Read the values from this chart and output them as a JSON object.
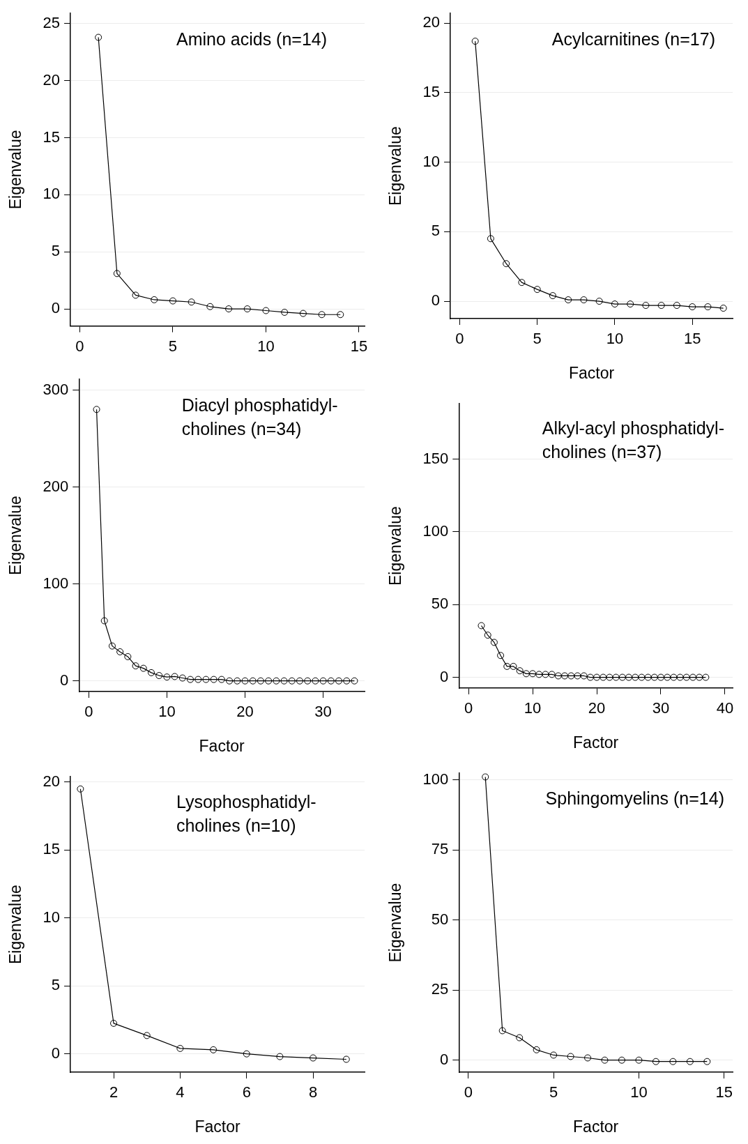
{
  "chart_data": [
    {
      "type": "line",
      "ylabel": "Eigenvalue",
      "annotations": [
        "Amino acids (n=14)"
      ],
      "x": [
        1,
        2,
        3,
        4,
        5,
        6,
        7,
        8,
        9,
        10,
        11,
        12,
        13,
        14
      ],
      "series": [
        {
          "color": "#000000",
          "values": [
            23.8,
            3.1,
            1.2,
            0.8,
            0.7,
            0.6,
            0.2,
            0,
            0,
            -0.15,
            -0.3,
            -0.4,
            -0.5,
            -0.5
          ]
        }
      ],
      "xlim": [
        -0.5,
        15.3
      ],
      "xticks": [
        0,
        5,
        10,
        15
      ],
      "ylim": [
        -1.5,
        25.9
      ],
      "yticks": [
        0,
        5,
        10,
        15,
        20,
        25
      ],
      "grid": "y",
      "marker": "circle",
      "line_style": "solid",
      "legend": false
    },
    {
      "type": "line",
      "xlabel": "Factor",
      "ylabel": "Eigenvalue",
      "annotations": [
        "Acylcarnitines (n=17)"
      ],
      "x": [
        1,
        2,
        3,
        4,
        5,
        6,
        7,
        8,
        9,
        10,
        11,
        12,
        13,
        14,
        15,
        16,
        17
      ],
      "series": [
        {
          "color": "#000000",
          "values": [
            18.7,
            4.5,
            2.7,
            1.35,
            0.85,
            0.4,
            0.1,
            0.1,
            0,
            -0.2,
            -0.2,
            -0.3,
            -0.3,
            -0.3,
            -0.4,
            -0.4,
            -0.5
          ]
        }
      ],
      "xlim": [
        -0.6,
        17.6
      ],
      "xticks": [
        0,
        5,
        10,
        15
      ],
      "ylim": [
        -1.25,
        20.7
      ],
      "yticks": [
        0,
        5,
        10,
        15,
        20
      ],
      "grid": "y",
      "marker": "circle",
      "line_style": "solid",
      "legend": false
    },
    {
      "type": "line",
      "xlabel": "Factor",
      "ylabel": "Eigenvalue",
      "annotations": [
        "Diacyl phosphatidyl-cholines (n=34)"
      ],
      "x": [
        1,
        2,
        3,
        4,
        5,
        6,
        7,
        8,
        9,
        10,
        11,
        12,
        13,
        14,
        15,
        16,
        17,
        18,
        19,
        20,
        21,
        22,
        23,
        24,
        25,
        26,
        27,
        28,
        29,
        30,
        31,
        32,
        33,
        34
      ],
      "series": [
        {
          "color": "#000000",
          "values": [
            280,
            62,
            36,
            30,
            25,
            15.5,
            13,
            8.5,
            5.5,
            4,
            4.5,
            3,
            1.5,
            1.5,
            1.5,
            1.5,
            1.5,
            0,
            0,
            0,
            0,
            0,
            0,
            0,
            0,
            0,
            0,
            0,
            0,
            0,
            0,
            0,
            0,
            0
          ]
        }
      ],
      "xlim": [
        -1.25,
        35.3
      ],
      "xticks": [
        0,
        10,
        20,
        30
      ],
      "ylim": [
        -11,
        311
      ],
      "yticks": [
        0,
        100,
        200,
        300
      ],
      "grid": "y",
      "marker": "circle",
      "line_style": "solid",
      "legend": false
    },
    {
      "type": "line",
      "xlabel": "Factor",
      "ylabel": "Eigenvalue",
      "annotations": [
        "Alkyl-acyl phosphatidyl-cholines (n=37)"
      ],
      "series": [
        {
          "color": "#000000",
          "x": [
            2,
            3,
            4,
            5,
            6,
            7,
            8,
            9,
            10,
            11,
            12,
            13,
            14,
            15,
            16,
            17,
            18,
            19,
            20,
            21,
            22,
            23,
            24,
            25,
            26,
            27,
            28,
            29,
            30,
            31,
            32,
            33,
            34,
            35,
            36,
            37
          ],
          "values": [
            35.5,
            29,
            24,
            15,
            7.5,
            7.5,
            4.5,
            2.5,
            2.5,
            2,
            2,
            2,
            1,
            1,
            1,
            1,
            1,
            0,
            0,
            0,
            0,
            0,
            0,
            0,
            0,
            0,
            0,
            0,
            0,
            0,
            0,
            0,
            0,
            0,
            0,
            0
          ]
        }
      ],
      "xlim": [
        -1.5,
        41.2
      ],
      "xticks": [
        0,
        10,
        20,
        30,
        40
      ],
      "ylim": [
        -7.4,
        188
      ],
      "yticks": [
        0,
        50,
        100,
        150
      ],
      "grid": "y",
      "marker": "circle",
      "line_style": "solid",
      "legend": false
    },
    {
      "type": "line",
      "xlabel": "Factor",
      "ylabel": "Eigenvalue",
      "annotations": [
        "Lysophosphatidyl-cholines (n=10)"
      ],
      "x": [
        1,
        2,
        3,
        4,
        5,
        6,
        7,
        8,
        9
      ],
      "series": [
        {
          "color": "#000000",
          "values": [
            19.5,
            2.25,
            1.35,
            0.4,
            0.3,
            0,
            -0.2,
            -0.3,
            -0.4
          ]
        }
      ],
      "xlim": [
        0.7,
        9.55
      ],
      "xticks": [
        2,
        4,
        6,
        8
      ],
      "ylim": [
        -1.35,
        20.4
      ],
      "yticks": [
        0,
        5,
        10,
        15,
        20
      ],
      "grid": "y",
      "marker": "circle",
      "line_style": "solid",
      "legend": false
    },
    {
      "type": "line",
      "xlabel": "Factor",
      "ylabel": "Eigenvalue",
      "annotations": [
        "Sphingomyelins (n=14)"
      ],
      "x": [
        1,
        2,
        3,
        4,
        5,
        6,
        7,
        8,
        9,
        10,
        11,
        12,
        13,
        14
      ],
      "series": [
        {
          "color": "#000000",
          "values": [
            101,
            10.5,
            8,
            3.7,
            1.8,
            1.3,
            0.8,
            0,
            0,
            0,
            -0.5,
            -0.5,
            -0.5,
            -0.5
          ]
        }
      ],
      "xlim": [
        -0.55,
        15.5
      ],
      "xticks": [
        0,
        5,
        10,
        15
      ],
      "ylim": [
        -4.3,
        102.3
      ],
      "yticks": [
        0,
        25,
        50,
        75,
        100
      ],
      "grid": "y",
      "marker": "circle",
      "line_style": "solid",
      "legend": false
    }
  ]
}
